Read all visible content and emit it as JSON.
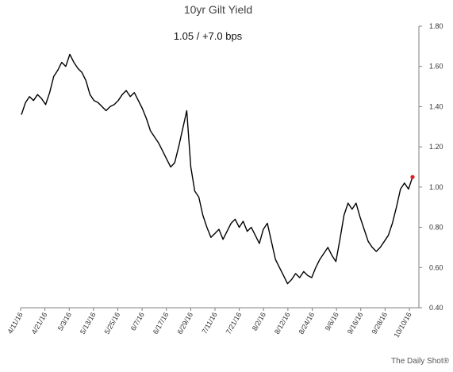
{
  "chart_data": {
    "type": "line",
    "title": "10yr Gilt Yield",
    "annotation": "1.05  /  +7.0 bps",
    "source": "The Daily Shot®",
    "xlabel": "",
    "ylabel": "",
    "ylim": [
      0.4,
      1.8
    ],
    "yticks": [
      "0.40",
      "0.60",
      "0.80",
      "1.00",
      "1.20",
      "1.40",
      "1.60",
      "1.80"
    ],
    "xticks": [
      "4/11/16",
      "4/21/16",
      "5/3/16",
      "5/13/16",
      "5/25/16",
      "6/7/16",
      "6/17/16",
      "6/29/16",
      "7/11/16",
      "7/21/16",
      "8/2/16",
      "8/12/16",
      "8/24/16",
      "9/6/16",
      "9/16/16",
      "9/28/16",
      "10/10/16"
    ],
    "grid": false,
    "colors": {
      "line": "#000000",
      "last_point": "#e02020"
    },
    "series": [
      {
        "values": [
          1.36,
          1.42,
          1.45,
          1.43,
          1.46,
          1.44,
          1.41,
          1.47,
          1.55,
          1.58,
          1.62,
          1.6,
          1.66,
          1.62,
          1.59,
          1.57,
          1.53,
          1.46,
          1.43,
          1.42,
          1.4,
          1.38,
          1.4,
          1.41,
          1.43,
          1.46,
          1.48,
          1.45,
          1.47,
          1.43,
          1.39,
          1.34,
          1.28,
          1.25,
          1.22,
          1.18,
          1.14,
          1.1,
          1.12,
          1.2,
          1.29,
          1.38,
          1.1,
          0.98,
          0.95,
          0.86,
          0.8,
          0.75,
          0.77,
          0.79,
          0.74,
          0.78,
          0.82,
          0.84,
          0.8,
          0.83,
          0.78,
          0.8,
          0.76,
          0.72,
          0.79,
          0.82,
          0.73,
          0.64,
          0.6,
          0.56,
          0.52,
          0.54,
          0.57,
          0.55,
          0.58,
          0.56,
          0.55,
          0.6,
          0.64,
          0.67,
          0.7,
          0.66,
          0.63,
          0.74,
          0.86,
          0.92,
          0.89,
          0.92,
          0.85,
          0.79,
          0.73,
          0.7,
          0.68,
          0.7,
          0.73,
          0.76,
          0.82,
          0.9,
          0.99,
          1.02,
          0.99,
          1.05
        ]
      }
    ],
    "last_value": 1.05
  }
}
